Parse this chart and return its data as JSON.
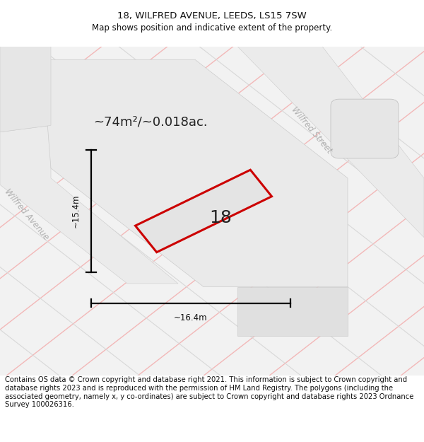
{
  "title": "18, WILFRED AVENUE, LEEDS, LS15 7SW",
  "subtitle": "Map shows position and indicative extent of the property.",
  "area_text": "~74m²/~0.018ac.",
  "plot_number": "18",
  "dim_width": "~16.4m",
  "dim_height": "~15.4m",
  "street_label_1": "Wilfred Street",
  "street_label_2": "Wilfred Avenue",
  "copyright_text": "Contains OS data © Crown copyright and database right 2021. This information is subject to Crown copyright and database rights 2023 and is reproduced with the permission of HM Land Registry. The polygons (including the associated geometry, namely x, y co-ordinates) are subject to Crown copyright and database rights 2023 Ordnance Survey 100026316.",
  "map_bg": "#f2f2f2",
  "plot_fill": "#e4e4e4",
  "plot_edge": "#cc0000",
  "grid_pink": "#f2b8b8",
  "grid_gray": "#d8d8d8",
  "title_fontsize": 9.5,
  "subtitle_fontsize": 8.5,
  "copyright_fontsize": 7.2,
  "area_fontsize": 13,
  "dim_fontsize": 8.5,
  "street_fontsize": 8.5,
  "plot_num_fontsize": 18
}
